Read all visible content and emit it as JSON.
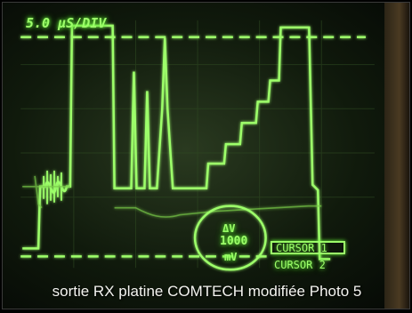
{
  "scope": {
    "timebase": "5.0 μS/DIV",
    "delta_label": "ΔV",
    "delta_value": "1000",
    "delta_unit": "mV",
    "cursor1": "CURSOR 1",
    "cursor2": "CURSOR 2",
    "trace_color": "#9dff6a"
  },
  "caption": "sortie RX platine COMTECH modifiée Photo 5"
}
